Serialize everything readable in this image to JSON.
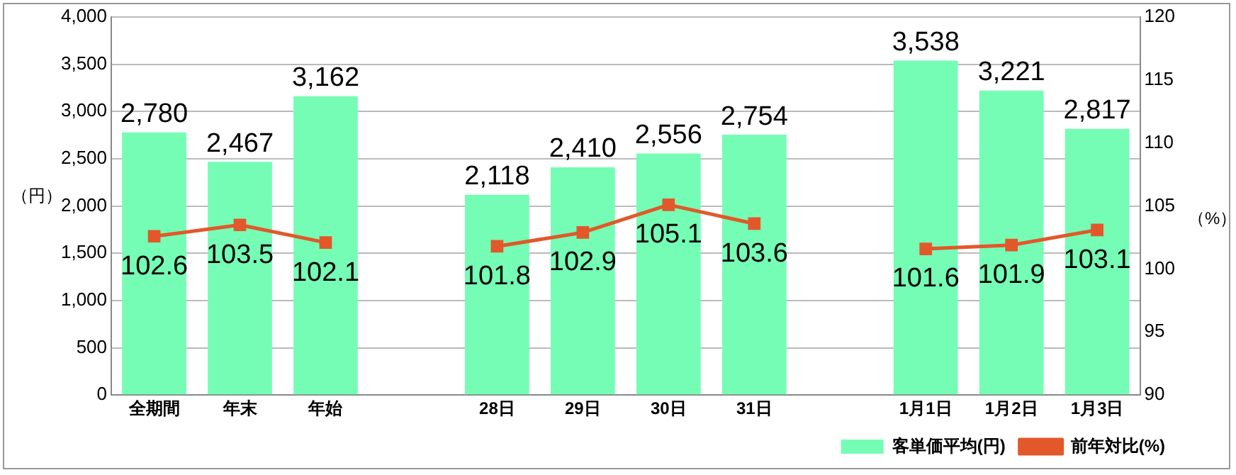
{
  "chart_data": {
    "type": "bar",
    "ylabel": "（円）",
    "y2label": "（%）",
    "categories": [
      "全期間",
      "年末",
      "年始",
      null,
      "28日",
      "29日",
      "30日",
      "31日",
      null,
      "1月1日",
      "1月2日",
      "1月3日"
    ],
    "series": [
      {
        "name": "客単価平均(円)",
        "color": "#75fdb5",
        "values": [
          2780,
          2467,
          3162,
          null,
          2118,
          2410,
          2556,
          2754,
          null,
          3538,
          3221,
          2817
        ]
      },
      {
        "name": "前年対比(%)",
        "type": "line",
        "axis": "y2",
        "color": "#e2582a",
        "marker": "square",
        "values": [
          102.6,
          103.5,
          102.1,
          null,
          101.8,
          102.9,
          105.1,
          103.6,
          null,
          101.6,
          101.9,
          103.1
        ]
      }
    ],
    "ylim": [
      0,
      4000
    ],
    "yticks": [
      {
        "value": 0,
        "label": "0"
      },
      {
        "value": 500,
        "label": "500"
      },
      {
        "value": 1000,
        "label": "1,000"
      },
      {
        "value": 1500,
        "label": "1,500"
      },
      {
        "value": 2000,
        "label": "2,000"
      },
      {
        "value": 2500,
        "label": "2,500"
      },
      {
        "value": 3000,
        "label": "3,000"
      },
      {
        "value": 3500,
        "label": "3,500"
      },
      {
        "value": 4000,
        "label": "4,000"
      }
    ],
    "y2lim": [
      90,
      120
    ],
    "y2ticks": [
      90,
      95,
      100,
      105,
      110,
      115,
      120
    ],
    "grid": "y",
    "legend": "bottom right",
    "value_labels": [
      [
        "2,780",
        "2,467",
        "3,162",
        null,
        "2,118",
        "2,410",
        "2,556",
        "2,754",
        null,
        "3,538",
        "3,221",
        "2,817"
      ],
      [
        "102.6",
        "103.5",
        "102.1",
        null,
        "101.8",
        "102.9",
        "105.1",
        "103.6",
        null,
        "101.6",
        "101.9",
        "103.1"
      ]
    ]
  }
}
